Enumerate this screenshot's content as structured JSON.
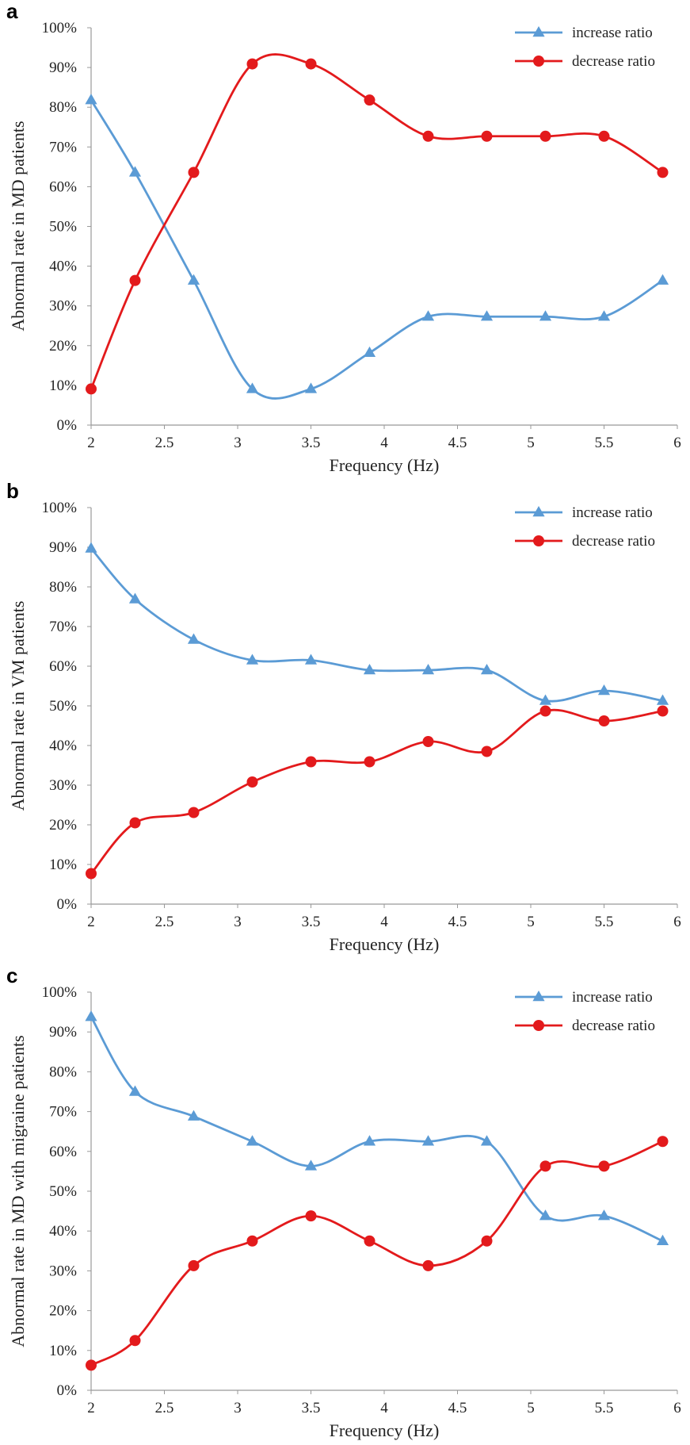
{
  "chart_data": [
    {
      "type": "line",
      "panel_label": "a",
      "xlabel": "Frequency (Hz)",
      "ylabel": "Abnormal rate in MD patients",
      "xlim": [
        2,
        6
      ],
      "ylim": [
        0,
        100
      ],
      "x_ticks": [
        "2",
        "2.5",
        "3",
        "3.5",
        "4",
        "4.5",
        "5",
        "5.5",
        "6"
      ],
      "y_ticks": [
        "0%",
        "10%",
        "20%",
        "30%",
        "40%",
        "50%",
        "60%",
        "70%",
        "80%",
        "90%",
        "100%"
      ],
      "x": [
        2,
        2.3,
        2.7,
        3.1,
        3.5,
        3.9,
        4.3,
        4.7,
        5.1,
        5.5,
        5.9
      ],
      "grid": false,
      "legend": "top-right",
      "series": [
        {
          "name": "increase ratio",
          "color": "#5B9BD5",
          "marker": "triangle",
          "values": [
            81.8,
            63.6,
            36.4,
            9.1,
            9.1,
            18.2,
            27.3,
            27.3,
            27.3,
            27.3,
            36.4
          ]
        },
        {
          "name": "decrease ratio",
          "color": "#E31A1C",
          "marker": "circle",
          "values": [
            9.1,
            36.4,
            63.6,
            90.9,
            90.9,
            81.8,
            72.7,
            72.7,
            72.7,
            72.7,
            63.6
          ]
        }
      ]
    },
    {
      "type": "line",
      "panel_label": "b",
      "xlabel": "Frequency (Hz)",
      "ylabel": "Abnormal rate in VM patients",
      "xlim": [
        2,
        6
      ],
      "ylim": [
        0,
        100
      ],
      "x_ticks": [
        "2",
        "2.5",
        "3",
        "3.5",
        "4",
        "4.5",
        "5",
        "5.5",
        "6"
      ],
      "y_ticks": [
        "0%",
        "10%",
        "20%",
        "30%",
        "40%",
        "50%",
        "60%",
        "70%",
        "80%",
        "90%",
        "100%"
      ],
      "x": [
        2,
        2.3,
        2.7,
        3.1,
        3.5,
        3.9,
        4.3,
        4.7,
        5.1,
        5.5,
        5.9
      ],
      "grid": false,
      "legend": "top-right",
      "series": [
        {
          "name": "increase ratio",
          "color": "#5B9BD5",
          "marker": "triangle",
          "values": [
            89.7,
            76.9,
            66.7,
            61.5,
            61.5,
            59.0,
            59.0,
            59.0,
            51.3,
            53.8,
            51.3
          ]
        },
        {
          "name": "decrease ratio",
          "color": "#E31A1C",
          "marker": "circle",
          "values": [
            7.7,
            20.5,
            23.1,
            30.8,
            35.9,
            35.9,
            41.0,
            38.5,
            48.7,
            46.2,
            48.7
          ]
        }
      ]
    },
    {
      "type": "line",
      "panel_label": "c",
      "xlabel": "Frequency (Hz)",
      "ylabel": "Abnormal rate in MD with migraine patients",
      "xlim": [
        2,
        6
      ],
      "ylim": [
        0,
        100
      ],
      "x_ticks": [
        "2",
        "2.5",
        "3",
        "3.5",
        "4",
        "4.5",
        "5",
        "5.5",
        "6"
      ],
      "y_ticks": [
        "0%",
        "10%",
        "20%",
        "30%",
        "40%",
        "50%",
        "60%",
        "70%",
        "80%",
        "90%",
        "100%"
      ],
      "x": [
        2,
        2.3,
        2.7,
        3.1,
        3.5,
        3.9,
        4.3,
        4.7,
        5.1,
        5.5,
        5.9
      ],
      "grid": false,
      "legend": "top-right",
      "series": [
        {
          "name": "increase ratio",
          "color": "#5B9BD5",
          "marker": "triangle",
          "values": [
            93.8,
            75.0,
            68.8,
            62.5,
            56.3,
            62.5,
            62.5,
            62.5,
            43.8,
            43.8,
            37.5
          ]
        },
        {
          "name": "decrease ratio",
          "color": "#E31A1C",
          "marker": "circle",
          "values": [
            6.3,
            12.5,
            31.3,
            37.5,
            43.8,
            37.5,
            31.3,
            37.5,
            56.3,
            56.3,
            62.5
          ]
        }
      ]
    }
  ]
}
